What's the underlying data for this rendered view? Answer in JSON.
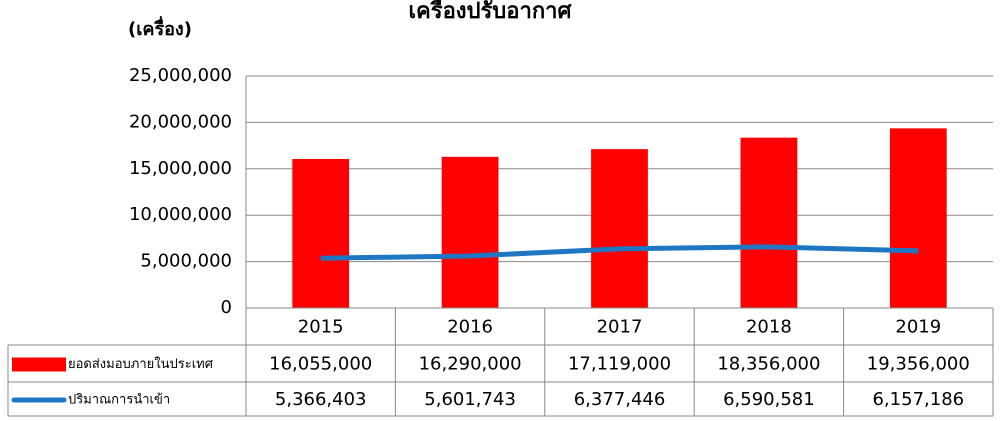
{
  "chart_data": {
    "type": "bar_line_table",
    "title": "เครื่องปรับอากาศ",
    "y_label": "(เครื่อง)",
    "categories": [
      "2015",
      "2016",
      "2017",
      "2018",
      "2019"
    ],
    "series": [
      {
        "name": "ยอดส่งมอบภายในประเทศ",
        "type": "bar",
        "color": "#ff0000",
        "values": [
          16055000,
          16290000,
          17119000,
          18356000,
          19356000
        ],
        "value_labels": [
          "16,055,000",
          "16,290,000",
          "17,119,000",
          "18,356,000",
          "19,356,000"
        ]
      },
      {
        "name": "ปริมาณการนำเข้า",
        "type": "line",
        "color": "#1f77c4",
        "values": [
          5366403,
          5601743,
          6377446,
          6590581,
          6157186
        ],
        "value_labels": [
          "5,366,403",
          "5,601,743",
          "6,377,446",
          "6,590,581",
          "6,157,186"
        ]
      }
    ],
    "ylim": [
      0,
      25000000
    ],
    "yticks": [
      0,
      {
        "value": 5000000,
        "label": "5,000,000"
      },
      {
        "value": 10000000,
        "label": "10,000,000"
      },
      {
        "value": 15000000,
        "label": "15,000,000"
      },
      {
        "value": 20000000,
        "label": "20,000,000"
      },
      {
        "value": 25000000,
        "label": "25,000,000"
      }
    ],
    "grid": true
  }
}
